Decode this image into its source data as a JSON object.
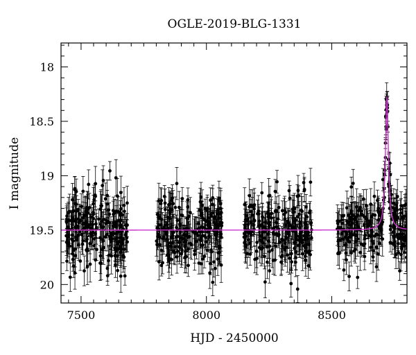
{
  "chart_data": {
    "type": "scatter",
    "title": "OGLE-2019-BLG-1331",
    "xlabel": "HJD - 2450000",
    "ylabel": "I magnitude",
    "xlim": [
      7420,
      8800
    ],
    "ylim": [
      20.17,
      17.78
    ],
    "y_inverted": true,
    "x_ticks": [
      7500,
      8000,
      8500
    ],
    "y_ticks": [
      18,
      18.5,
      19,
      19.5,
      20
    ],
    "x_tick_labels": [
      "7500",
      "8000",
      "8500"
    ],
    "y_tick_labels": [
      "18",
      "18.5",
      "19",
      "19.5",
      "20"
    ],
    "grid": false,
    "legend": "none",
    "series": [
      {
        "kind": "points_with_errorbars",
        "color": "#000000",
        "seasons": [
          {
            "x_range": [
              7440,
              7685
            ],
            "mag_mean": 19.5,
            "mag_scatter": 0.2,
            "errorbar": 0.12
          },
          {
            "x_range": [
              7800,
              8065
            ],
            "mag_mean": 19.5,
            "mag_scatter": 0.18,
            "errorbar": 0.12
          },
          {
            "x_range": [
              8150,
              8420
            ],
            "mag_mean": 19.52,
            "mag_scatter": 0.18,
            "errorbar": 0.12
          },
          {
            "x_range": [
              8520,
              8800
            ],
            "mag_mean": 19.5,
            "mag_scatter": 0.17,
            "errorbar": 0.12
          }
        ],
        "peak_points": [
          {
            "x": 8710,
            "y": 19.2
          },
          {
            "x": 8712,
            "y": 18.95
          },
          {
            "x": 8714,
            "y": 18.7
          },
          {
            "x": 8716,
            "y": 18.45
          },
          {
            "x": 8718,
            "y": 18.3
          },
          {
            "x": 8720,
            "y": 18.28
          },
          {
            "x": 8722,
            "y": 18.35
          },
          {
            "x": 8724,
            "y": 18.55
          },
          {
            "x": 8726,
            "y": 18.85
          },
          {
            "x": 8728,
            "y": 19.1
          },
          {
            "x": 8731,
            "y": 19.3
          }
        ]
      },
      {
        "kind": "model_curve",
        "color": "#cc33cc",
        "baseline": 19.5,
        "peak_x": 8720,
        "peak_y": 18.27,
        "width_days": 7
      }
    ]
  }
}
